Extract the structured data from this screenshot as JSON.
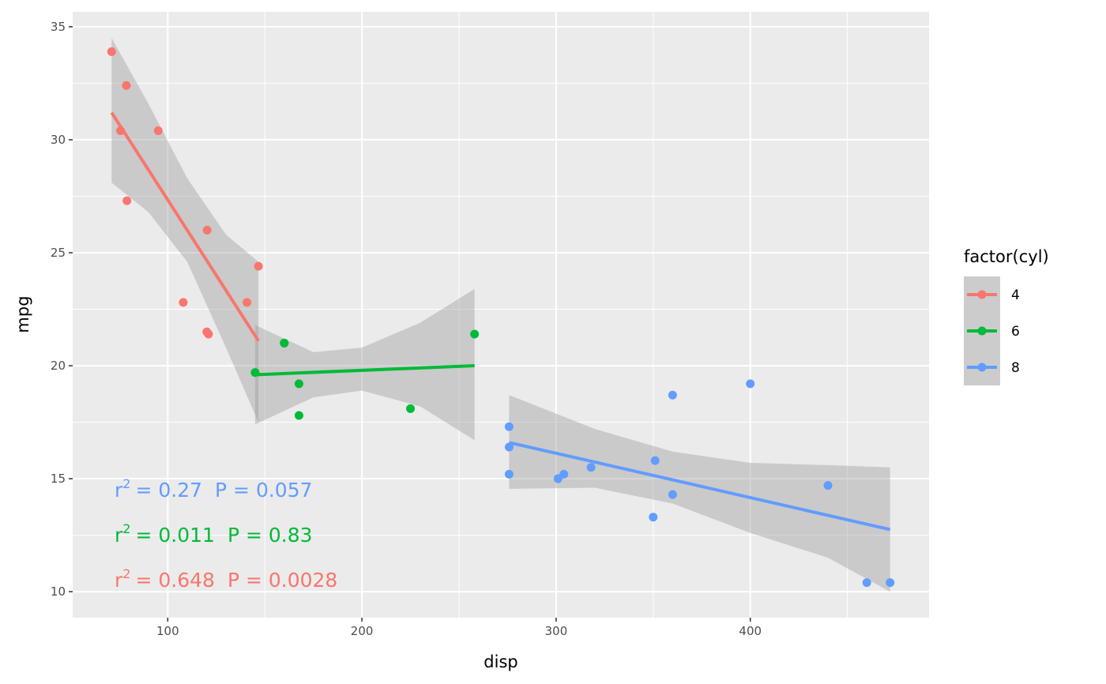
{
  "chart_data": {
    "type": "scatter",
    "x_label": "disp",
    "y_label": "mpg",
    "xlim": [
      51.05,
      492.05
    ],
    "ylim": [
      8.85,
      35.66
    ],
    "xticks": [
      100,
      200,
      300,
      400
    ],
    "yticks": [
      10,
      15,
      20,
      25,
      30,
      35
    ],
    "xminor": [
      150,
      250,
      350,
      450
    ],
    "yminor": [
      12.5,
      17.5,
      22.5,
      27.5,
      32.5
    ],
    "grid": true,
    "legend_title": "factor(cyl)",
    "legend_position": "right",
    "series": [
      {
        "name": "4",
        "color": "#F8766D",
        "x": [
          108,
          146.7,
          140.8,
          78.7,
          75.7,
          71.1,
          120.1,
          79,
          120.3,
          95.1,
          121
        ],
        "values": [
          22.8,
          24.4,
          22.8,
          32.4,
          30.4,
          33.9,
          21.5,
          27.3,
          26.0,
          30.4,
          21.4
        ],
        "fit": {
          "x": [
            71.1,
            146.7
          ],
          "values": [
            31.2,
            21.1
          ]
        },
        "band": {
          "x": [
            71.1,
            90,
            110,
            130,
            146.7
          ],
          "upper": [
            34.5,
            31.6,
            28.3,
            25.8,
            24.6
          ],
          "lower": [
            28.1,
            26.8,
            24.6,
            20.8,
            17.5
          ]
        }
      },
      {
        "name": "6",
        "color": "#00BA38",
        "x": [
          160,
          160,
          258,
          225,
          167.6,
          167.6,
          145
        ],
        "values": [
          21.0,
          21.0,
          21.4,
          18.1,
          19.2,
          17.8,
          19.7
        ],
        "fit": {
          "x": [
            145,
            258
          ],
          "values": [
            19.6,
            20.0
          ]
        },
        "band": {
          "x": [
            145,
            175,
            200,
            230,
            258
          ],
          "upper": [
            21.8,
            20.6,
            20.8,
            21.9,
            23.4
          ],
          "lower": [
            17.4,
            18.6,
            18.9,
            18.2,
            16.7
          ]
        }
      },
      {
        "name": "8",
        "color": "#619CFF",
        "x": [
          360,
          360,
          275.8,
          275.8,
          275.8,
          472,
          460,
          440,
          318,
          304,
          350,
          400,
          351,
          301
        ],
        "values": [
          18.7,
          14.3,
          16.4,
          17.3,
          15.2,
          10.4,
          10.4,
          14.7,
          15.5,
          15.2,
          13.3,
          19.2,
          15.8,
          15.0
        ],
        "fit": {
          "x": [
            275.8,
            472
          ],
          "values": [
            16.6,
            12.75
          ]
        },
        "band": {
          "x": [
            275.8,
            320,
            360,
            400,
            440,
            472
          ],
          "upper": [
            18.7,
            17.2,
            16.2,
            15.7,
            15.6,
            15.5
          ],
          "lower": [
            14.55,
            14.6,
            13.9,
            12.6,
            11.5,
            10.0
          ]
        }
      }
    ],
    "annotations": [
      {
        "r": "r",
        "sup": "2",
        "eq": "= 0.27",
        "p": "P = 0.057",
        "color": "#619CFF"
      },
      {
        "r": "r",
        "sup": "2",
        "eq": "= 0.011",
        "p": "P = 0.83",
        "color": "#00BA38"
      },
      {
        "r": "r",
        "sup": "2",
        "eq": "= 0.648",
        "p": "P = 0.0028",
        "color": "#F8766D"
      }
    ]
  }
}
